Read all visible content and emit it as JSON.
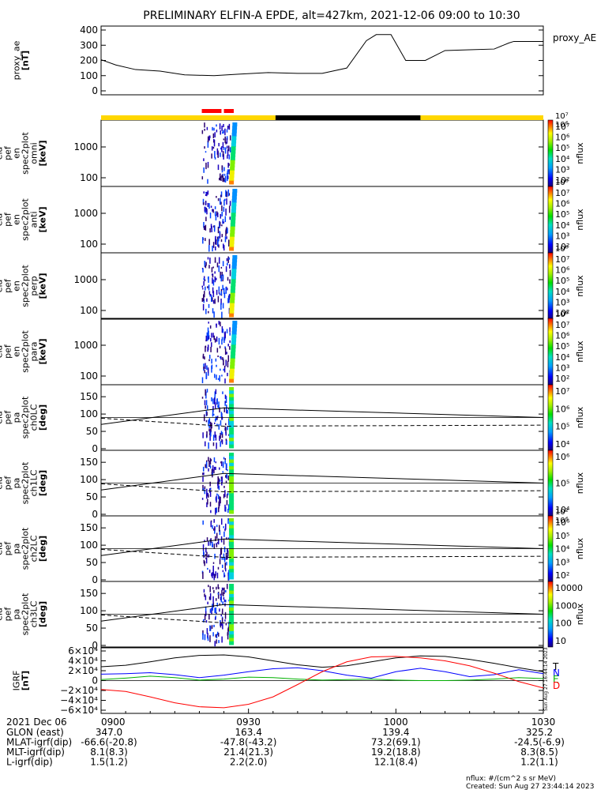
{
  "title": "PRELIMINARY ELFIN-A EPDE, alt=427km, 2021-12-06 09:00 to 10:30",
  "chart_data": [
    {
      "type": "line",
      "panel": "proxy_ae",
      "ylabel_lines": [
        "proxy_ae",
        "[nT]"
      ],
      "yticks": [
        "0",
        "100",
        "200",
        "300",
        "400"
      ],
      "ylim": [
        0,
        420
      ],
      "legend": "proxy_AE",
      "x_minutes": [
        0,
        3,
        7,
        12,
        17,
        23,
        28,
        34,
        40,
        45,
        50,
        54,
        56,
        59,
        62,
        66,
        70,
        75,
        80,
        83,
        84,
        86,
        90
      ],
      "values": [
        205,
        170,
        140,
        130,
        105,
        100,
        110,
        120,
        115,
        115,
        150,
        330,
        370,
        370,
        200,
        200,
        265,
        270,
        275,
        315,
        325,
        325,
        325
      ]
    },
    {
      "type": "heatmap",
      "panel": "ela_pef_en_spec2plot_omni",
      "ylabel_lines": [
        "ela",
        "pef",
        "en",
        "spec2plot",
        "omni",
        "[keV]"
      ],
      "yticks": [
        "100",
        "1000"
      ],
      "colorbar_ticks": [
        "10²",
        "10³",
        "10⁴",
        "10⁵",
        "10⁶",
        "10⁷"
      ],
      "colorbar_extra": [
        "10⁷",
        "10⁶"
      ],
      "colorbar_label": "nflux",
      "data_window_minutes": [
        20.5,
        27.5
      ]
    },
    {
      "type": "heatmap",
      "panel": "ela_pef_en_spec2plot_anti",
      "ylabel_lines": [
        "ela",
        "pef",
        "en",
        "spec2plot",
        "anti",
        "[keV]"
      ],
      "yticks": [
        "100",
        "1000"
      ],
      "colorbar_ticks": [
        "10²",
        "10³",
        "10⁴",
        "10⁵",
        "10⁶",
        "10⁷"
      ],
      "colorbar_extra": [
        "10⁶"
      ],
      "colorbar_label": "nflux",
      "data_window_minutes": [
        20.5,
        27.5
      ]
    },
    {
      "type": "heatmap",
      "panel": "ela_pef_en_spec2plot_perp",
      "ylabel_lines": [
        "ela",
        "pef",
        "en",
        "spec2plot",
        "perp",
        "[keV]"
      ],
      "yticks": [
        "100",
        "1000"
      ],
      "colorbar_ticks": [
        "10²",
        "10³",
        "10⁴",
        "10⁵",
        "10⁶",
        "10⁷"
      ],
      "colorbar_extra": [
        "10⁶"
      ],
      "colorbar_label": "nflux",
      "data_window_minutes": [
        20.5,
        27.5
      ]
    },
    {
      "type": "heatmap",
      "panel": "ela_pef_en_spec2plot_para",
      "ylabel_lines": [
        "ela",
        "pef",
        "en",
        "spec2plot",
        "para",
        "[keV]"
      ],
      "yticks": [
        "100",
        "1000"
      ],
      "colorbar_ticks": [
        "10²",
        "10³",
        "10⁴",
        "10⁵",
        "10⁶",
        "10⁷"
      ],
      "colorbar_extra": [
        "10⁶"
      ],
      "colorbar_label": "nflux",
      "data_window_minutes": [
        20.5,
        27.5
      ]
    },
    {
      "type": "heatmap",
      "panel": "ela_pef_pa_spec2plot_ch0LC",
      "ylabel_lines": [
        "ela",
        "pef",
        "pa",
        "spec2plot",
        "ch0LC",
        "[deg]"
      ],
      "yticks": [
        "0",
        "50",
        "100",
        "150"
      ],
      "ylim": [
        0,
        180
      ],
      "colorbar_ticks": [
        "10⁴",
        "10⁵",
        "10⁶",
        "10⁷"
      ],
      "colorbar_label": "nflux",
      "lc_minutes": [
        0,
        25,
        90
      ],
      "lc_solid_deg": [
        70,
        118,
        90
      ],
      "lc_dashed_deg": [
        88,
        65,
        68
      ],
      "data_window_minutes": [
        20.5,
        27.5
      ]
    },
    {
      "type": "heatmap",
      "panel": "ela_pef_pa_spec2plot_ch1LC",
      "ylabel_lines": [
        "ela",
        "pef",
        "pa",
        "spec2plot",
        "ch1LC",
        "[deg]"
      ],
      "yticks": [
        "0",
        "50",
        "100",
        "150"
      ],
      "ylim": [
        0,
        180
      ],
      "colorbar_ticks": [
        "10⁴",
        "10⁵",
        "10⁶"
      ],
      "colorbar_label": "nflux",
      "lc_minutes": [
        0,
        25,
        90
      ],
      "lc_solid_deg": [
        70,
        118,
        90
      ],
      "lc_dashed_deg": [
        88,
        65,
        68
      ],
      "data_window_minutes": [
        20.5,
        27.5
      ]
    },
    {
      "type": "heatmap",
      "panel": "ela_pef_pa_spec2plot_ch2LC",
      "ylabel_lines": [
        "ela",
        "pef",
        "pa",
        "spec2plot",
        "ch2LC",
        "[deg]"
      ],
      "yticks": [
        "0",
        "50",
        "100",
        "150"
      ],
      "ylim": [
        0,
        180
      ],
      "colorbar_ticks": [
        "10²",
        "10³",
        "10⁴",
        "10⁵",
        "10⁶"
      ],
      "colorbar_extra": [
        "10²",
        "10⁶"
      ],
      "colorbar_label": "nflux",
      "lc_minutes": [
        0,
        25,
        90
      ],
      "lc_solid_deg": [
        70,
        118,
        90
      ],
      "lc_dashed_deg": [
        88,
        65,
        68
      ],
      "data_window_minutes": [
        20.5,
        27.5
      ]
    },
    {
      "type": "heatmap",
      "panel": "ela_pef_pa_spec2plot_ch3LC",
      "ylabel_lines": [
        "ela",
        "pef",
        "pa",
        "spec2plot",
        "ch3LC",
        "[deg]"
      ],
      "yticks": [
        "0",
        "50",
        "100",
        "150"
      ],
      "ylim": [
        0,
        180
      ],
      "colorbar_ticks": [
        "10",
        "100",
        "1000",
        "10000"
      ],
      "colorbar_label": "nflux",
      "lc_minutes": [
        0,
        25,
        90
      ],
      "lc_solid_deg": [
        70,
        118,
        90
      ],
      "lc_dashed_deg": [
        88,
        65,
        68
      ],
      "data_window_minutes": [
        20.5,
        27.5
      ]
    },
    {
      "type": "line",
      "panel": "igrf",
      "ylabel_lines": [
        "IGRF",
        "[nT]"
      ],
      "yticks": [
        "−6×10⁴",
        "−4×10⁴",
        "−2×10⁴",
        "0",
        "2×10⁴",
        "4×10⁴",
        "6×10⁴"
      ],
      "ylim": [
        -65000,
        65000
      ],
      "x_minutes": [
        0,
        5,
        10,
        15,
        20,
        25,
        30,
        35,
        40,
        45,
        50,
        55,
        60,
        65,
        70,
        75,
        80,
        85,
        90
      ],
      "series": [
        {
          "name": "T",
          "color": "#000000",
          "values": [
            28000,
            31000,
            38000,
            46000,
            51000,
            52000,
            48000,
            40000,
            32000,
            27000,
            30000,
            38000,
            46000,
            50000,
            49000,
            43000,
            35000,
            26000,
            18000
          ]
        },
        {
          "name": "N",
          "color": "#0000ff",
          "values": [
            13000,
            14000,
            16000,
            12000,
            6000,
            11000,
            18000,
            24000,
            26000,
            20000,
            11000,
            5000,
            18000,
            25000,
            18000,
            8000,
            12000,
            22000,
            14000
          ]
        },
        {
          "name": "E",
          "color": "#00b000",
          "values": [
            2000,
            5000,
            9000,
            6000,
            1000,
            3000,
            7000,
            6000,
            3000,
            1000,
            2000,
            3000,
            1000,
            0,
            0,
            1000,
            3000,
            6000,
            4000
          ]
        },
        {
          "name": "D",
          "color": "#ff0000",
          "values": [
            -18000,
            -22000,
            -33000,
            -45000,
            -53000,
            -55000,
            -48000,
            -33000,
            -8000,
            18000,
            38000,
            48000,
            49000,
            46000,
            40000,
            30000,
            15000,
            -2000,
            -15000
          ]
        }
      ],
      "side_stamp": "Sun Aug 27 16:44:14 2023"
    }
  ],
  "orbit_bar": {
    "segments": [
      {
        "start": 0,
        "end": 35.5,
        "color": "#ffd700"
      },
      {
        "start": 35.5,
        "end": 65,
        "color": "#000000"
      },
      {
        "start": 65,
        "end": 90,
        "color": "#ffd700"
      }
    ],
    "science_zones": [
      {
        "start": 20.5,
        "end": 24.5,
        "color": "#ff0000"
      },
      {
        "start": 25,
        "end": 27,
        "color": "#ff0000"
      }
    ]
  },
  "xaxis": {
    "ticks": [
      {
        "minute": 0,
        "label": "0900"
      },
      {
        "minute": 30,
        "label": "0930"
      },
      {
        "minute": 60,
        "label": "1000"
      },
      {
        "minute": 90,
        "label": "1030"
      }
    ]
  },
  "ephemeris": {
    "date_label": "2021 Dec 06",
    "rows": [
      {
        "label": "GLON (east)",
        "values": [
          "347.0",
          "163.4",
          "139.4",
          "325.2"
        ]
      },
      {
        "label": "MLAT-igrf(dip)",
        "values": [
          "-66.6(-20.8)",
          "-47.8(-43.2)",
          "73.2(69.1)",
          "-24.5(-6.9)"
        ]
      },
      {
        "label": "MLT-igrf(dip)",
        "values": [
          "8.1(8.3)",
          "21.4(21.3)",
          "19.2(18.8)",
          "8.3(8.5)"
        ]
      },
      {
        "label": "L-igrf(dip)",
        "values": [
          "1.5(1.2)",
          "2.2(2.0)",
          "12.1(8.4)",
          "1.2(1.1)"
        ]
      }
    ]
  },
  "footer": {
    "units": "nflux: #/(cm^2 s sr MeV)",
    "created": "Created: Sun Aug 27 23:44:14 2023"
  }
}
